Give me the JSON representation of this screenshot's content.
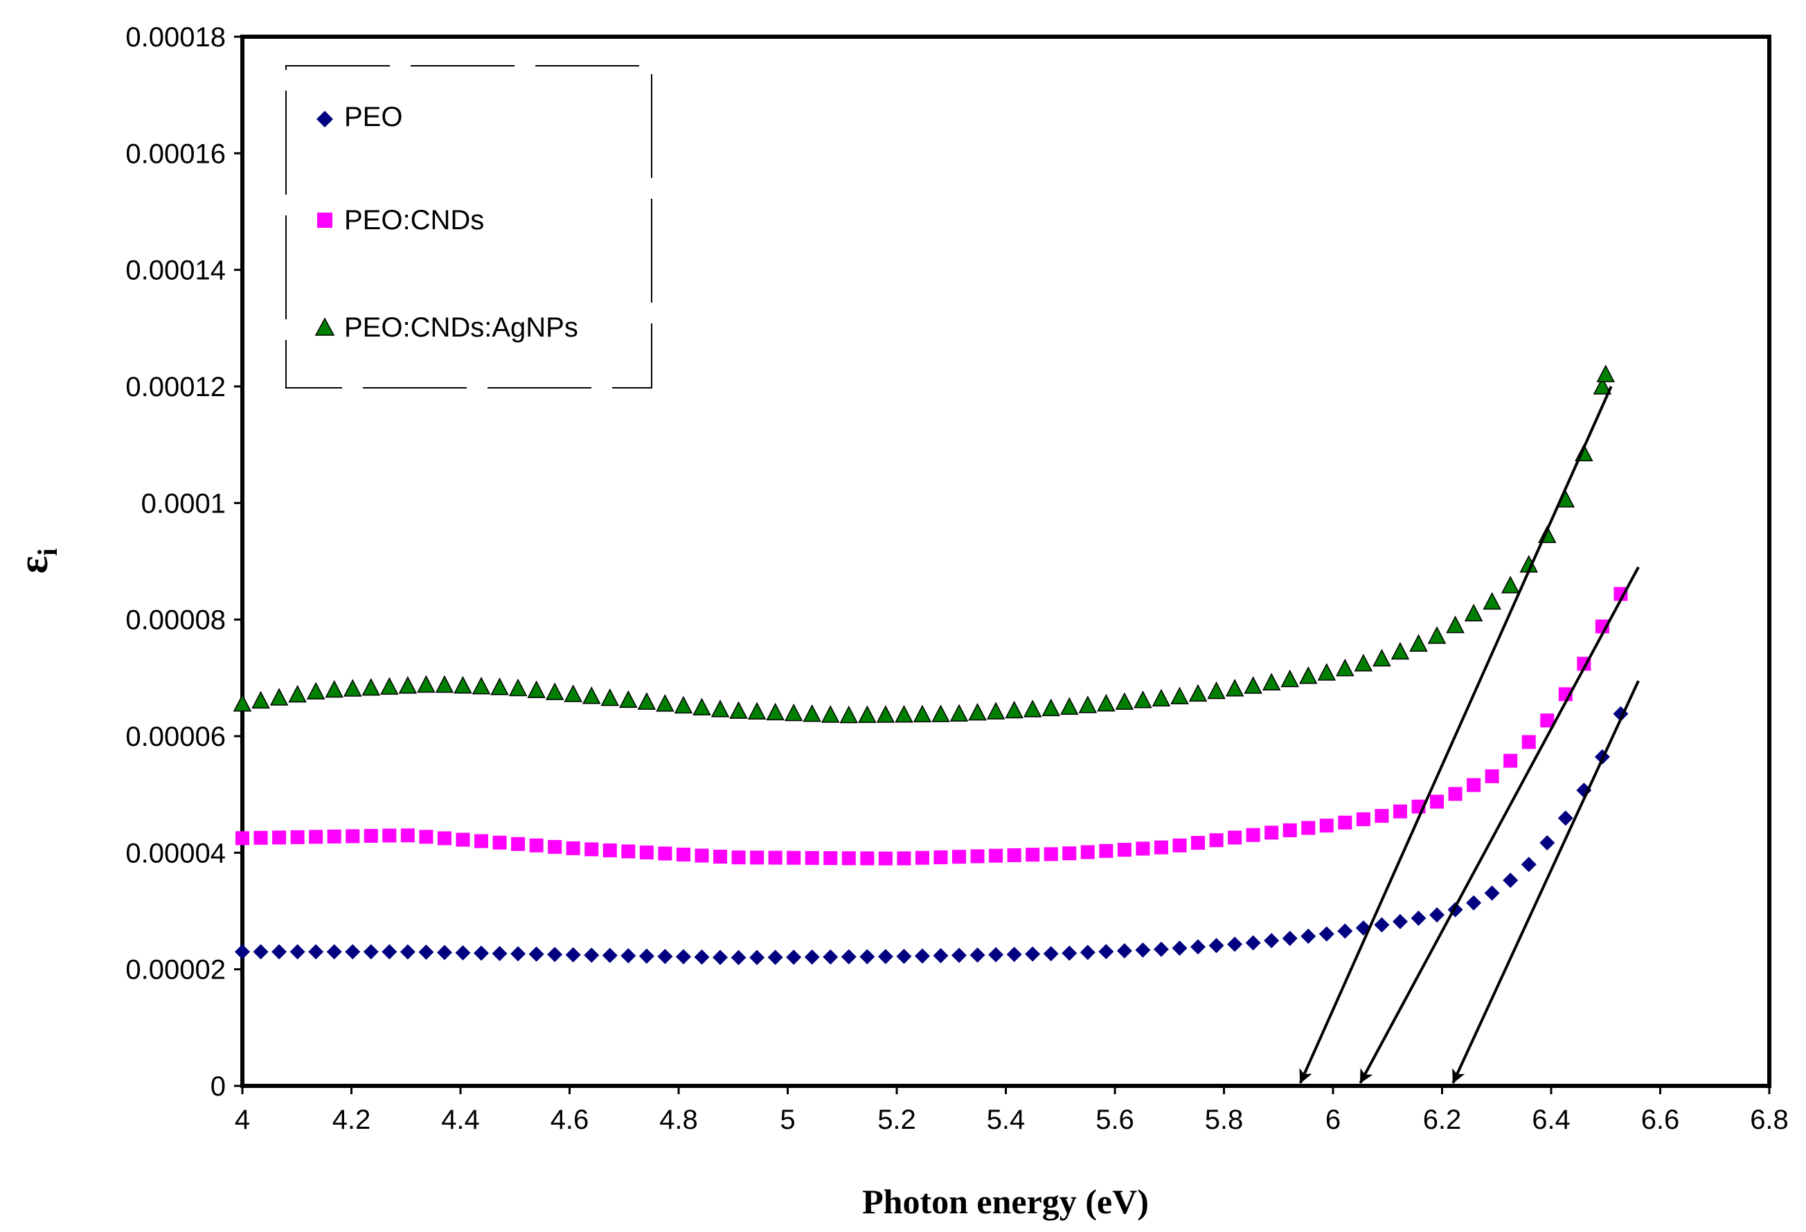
{
  "chart_data": {
    "type": "scatter",
    "title": "",
    "xlabel": "Photon energy (eV)",
    "ylabel": "ε",
    "ylabel_sub": "i",
    "xlim": [
      4,
      6.8
    ],
    "ylim": [
      0,
      0.00018
    ],
    "x_ticks": [
      4,
      4.2,
      4.4,
      4.6,
      4.8,
      5,
      5.2,
      5.4,
      5.6,
      5.8,
      6,
      6.2,
      6.4,
      6.6,
      6.8
    ],
    "x_tick_labels": [
      "4",
      "4.2",
      "4.4",
      "4.6",
      "4.8",
      "5",
      "5.2",
      "5.4",
      "5.6",
      "5.8",
      "6",
      "6.2",
      "6.4",
      "6.6",
      "6.8"
    ],
    "y_ticks": [
      0,
      2e-05,
      4e-05,
      6e-05,
      8e-05,
      0.0001,
      0.00012,
      0.00014,
      0.00016,
      0.00018
    ],
    "y_tick_labels": [
      "0",
      "0.00002",
      "0.00004",
      "0.00006",
      "0.00008",
      "0.0001",
      "0.00012",
      "0.00014",
      "0.00016",
      "0.00018"
    ],
    "grid": false,
    "legend_position": "top-left",
    "series": [
      {
        "name": "PEO",
        "marker": "diamond",
        "color": "#000080",
        "x_start": 4.0,
        "x_step": 0.0337,
        "count": 76,
        "profile": [
          [
            4.0,
            2.3e-05
          ],
          [
            4.3,
            2.3e-05
          ],
          [
            4.6,
            2.25e-05
          ],
          [
            4.9,
            2.2e-05
          ],
          [
            5.2,
            2.22e-05
          ],
          [
            5.5,
            2.27e-05
          ],
          [
            5.7,
            2.35e-05
          ],
          [
            5.85,
            2.45e-05
          ],
          [
            6.0,
            2.62e-05
          ],
          [
            6.1,
            2.78e-05
          ],
          [
            6.2,
            2.95e-05
          ],
          [
            6.25,
            3.1e-05
          ],
          [
            6.3,
            3.35e-05
          ],
          [
            6.35,
            3.7e-05
          ],
          [
            6.4,
            4.25e-05
          ],
          [
            6.45,
            4.9e-05
          ],
          [
            6.5,
            5.75e-05
          ],
          [
            6.55,
            6.9e-05
          ]
        ]
      },
      {
        "name": "PEO:CNDs",
        "marker": "square",
        "color": "#FF00FF",
        "x_start": 4.0,
        "x_step": 0.0337,
        "count": 76,
        "profile": [
          [
            4.0,
            4.25e-05
          ],
          [
            4.3,
            4.3e-05
          ],
          [
            4.6,
            4.08e-05
          ],
          [
            4.9,
            3.92e-05
          ],
          [
            5.2,
            3.9e-05
          ],
          [
            5.5,
            3.98e-05
          ],
          [
            5.7,
            4.1e-05
          ],
          [
            5.85,
            4.3e-05
          ],
          [
            6.0,
            4.48e-05
          ],
          [
            6.1,
            4.65e-05
          ],
          [
            6.2,
            4.9e-05
          ],
          [
            6.3,
            5.35e-05
          ],
          [
            6.35,
            5.8e-05
          ],
          [
            6.4,
            6.35e-05
          ],
          [
            6.45,
            7.05e-05
          ],
          [
            6.5,
            8e-05
          ],
          [
            6.55,
            8.8e-05
          ]
        ]
      },
      {
        "name": "PEO:CNDs:AgNPs",
        "marker": "triangle",
        "color": "#008000",
        "x_start": 4.0,
        "x_step": 0.0337,
        "count": 76,
        "profile": [
          [
            4.0,
            6.55e-05
          ],
          [
            4.15,
            6.78e-05
          ],
          [
            4.35,
            6.88e-05
          ],
          [
            4.5,
            6.82e-05
          ],
          [
            4.7,
            6.62e-05
          ],
          [
            4.9,
            6.43e-05
          ],
          [
            5.1,
            6.35e-05
          ],
          [
            5.3,
            6.37e-05
          ],
          [
            5.5,
            6.48e-05
          ],
          [
            5.7,
            6.65e-05
          ],
          [
            5.85,
            6.85e-05
          ],
          [
            6.0,
            7.1e-05
          ],
          [
            6.1,
            7.35e-05
          ],
          [
            6.2,
            7.75e-05
          ],
          [
            6.3,
            8.35e-05
          ],
          [
            6.35,
            8.8e-05
          ],
          [
            6.4,
            9.55e-05
          ],
          [
            6.45,
            0.000105
          ],
          [
            6.5,
            0.000122
          ]
        ]
      }
    ],
    "annotations": [
      {
        "name": "extrapolation-line-agnps",
        "from": [
          6.51,
          0.00012
        ],
        "to": [
          5.94,
          5e-07
        ]
      },
      {
        "name": "extrapolation-line-cnds",
        "from": [
          6.56,
          8.9e-05
        ],
        "to": [
          6.05,
          5e-07
        ]
      },
      {
        "name": "extrapolation-line-peo",
        "from": [
          6.56,
          6.95e-05
        ],
        "to": [
          6.22,
          5e-07
        ]
      }
    ]
  },
  "colors": {
    "axis": "#000000",
    "background": "#ffffff"
  }
}
